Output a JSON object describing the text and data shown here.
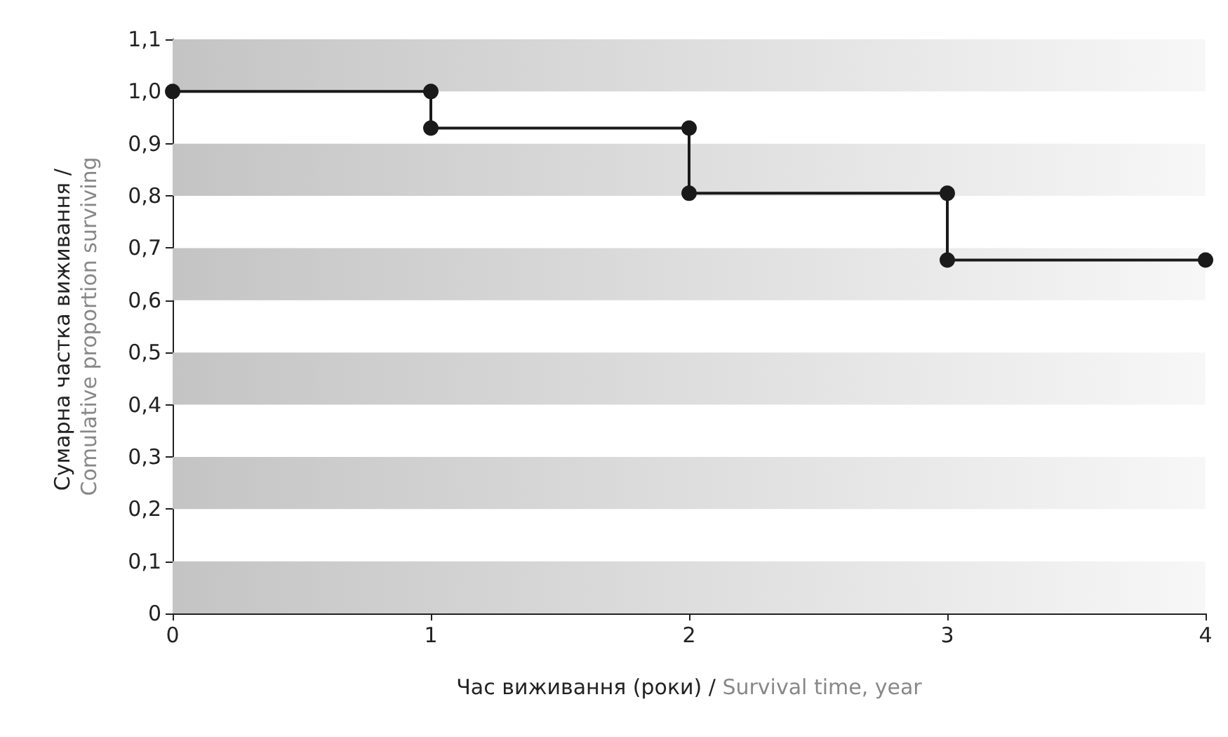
{
  "chart_data": {
    "type": "step",
    "xlabel": "Час виживання (роки) / Survival time, year",
    "ylabel": "Сумарна частка виживання / Comulative proportion surviving",
    "x": [
      0,
      1,
      1,
      2,
      2,
      3,
      3,
      4
    ],
    "series": [
      {
        "color": "#1a1a1a",
        "values": [
          1.0,
          1.0,
          0.93,
          0.93,
          0.805,
          0.805,
          0.677,
          0.677
        ]
      }
    ],
    "xlim": [
      0,
      4
    ],
    "xticks": [
      0,
      1,
      2,
      3,
      4
    ],
    "ylim": [
      0,
      1.1
    ],
    "yticks": [
      0,
      {
        "value": 0.1,
        "label": "0,1"
      },
      {
        "value": 0.2,
        "label": "0,2"
      },
      {
        "value": 0.3,
        "label": "0,3"
      },
      {
        "value": 0.4,
        "label": "0,4"
      },
      {
        "value": 0.5,
        "label": "0,5"
      },
      {
        "value": 0.6,
        "label": "0,6"
      },
      {
        "value": 0.7,
        "label": "0,7"
      },
      {
        "value": 0.8,
        "label": "0,8"
      },
      {
        "value": 0.9,
        "label": "0,9"
      },
      {
        "value": 1.0,
        "label": "1,0"
      },
      {
        "value": 1.1,
        "label": "1,1"
      }
    ],
    "bands": [
      {
        "axis": "y",
        "from": 0,
        "to": 0.1,
        "color": "#c4c4c4"
      },
      {
        "axis": "y",
        "from": 0.2,
        "to": 0.3,
        "color": "#c4c4c4"
      },
      {
        "axis": "y",
        "from": 0.4,
        "to": 0.5,
        "color": "#c4c4c4"
      },
      {
        "axis": "y",
        "from": 0.6,
        "to": 0.7,
        "color": "#c4c4c4"
      },
      {
        "axis": "y",
        "from": 0.8,
        "to": 0.9,
        "color": "#c4c4c4"
      },
      {
        "axis": "y",
        "from": 1.0,
        "to": 1.1,
        "color": "#c4c4c4"
      }
    ],
    "marker": "circle",
    "line_style": "solid"
  }
}
